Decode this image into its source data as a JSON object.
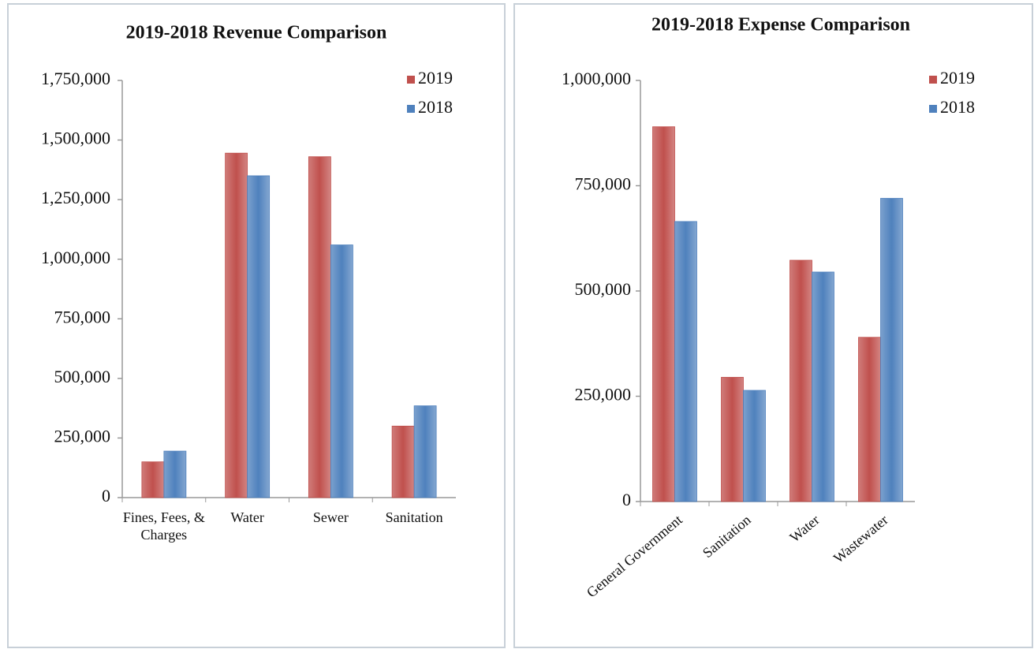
{
  "chart_data": [
    {
      "type": "bar",
      "title": "2019-2018 Revenue Comparison",
      "categories": [
        "Fines, Fees, & Charges",
        "Water",
        "Sewer",
        "Sanitation"
      ],
      "series": [
        {
          "name": "2019",
          "color": "#c0504d",
          "values": [
            150000,
            1445000,
            1430000,
            300000
          ]
        },
        {
          "name": "2018",
          "color": "#4f81bd",
          "values": [
            195000,
            1350000,
            1060000,
            385000
          ]
        }
      ],
      "ylim": [
        0,
        1750000
      ],
      "yticks": [
        0,
        {
          "value": 250000,
          "label": "250,000"
        },
        {
          "value": 500000,
          "label": "500,000"
        },
        {
          "value": 750000,
          "label": "750,000"
        },
        {
          "value": 1000000,
          "label": "1,000,000"
        },
        {
          "value": 1250000,
          "label": "1,250,000"
        },
        {
          "value": 1500000,
          "label": "1,500,000"
        },
        {
          "value": 1750000,
          "label": "1,750,000"
        }
      ],
      "grid": false,
      "legend": "top-right"
    },
    {
      "type": "bar",
      "title": "2019-2018 Expense Comparison",
      "categories": [
        "General Government",
        "Sanitation",
        "Water",
        "Wastewater"
      ],
      "series": [
        {
          "name": "2019",
          "color": "#c0504d",
          "values": [
            890000,
            295000,
            573000,
            390000
          ]
        },
        {
          "name": "2018",
          "color": "#4f81bd",
          "values": [
            665000,
            264000,
            545000,
            720000
          ]
        }
      ],
      "ylim": [
        0,
        1000000
      ],
      "yticks": [
        0,
        {
          "value": 250000,
          "label": "250,000"
        },
        {
          "value": 500000,
          "label": "500,000"
        },
        {
          "value": 750000,
          "label": "750,000"
        },
        {
          "value": 1000000,
          "label": "1,000,000"
        }
      ],
      "grid": false,
      "legend": "top-right"
    }
  ]
}
